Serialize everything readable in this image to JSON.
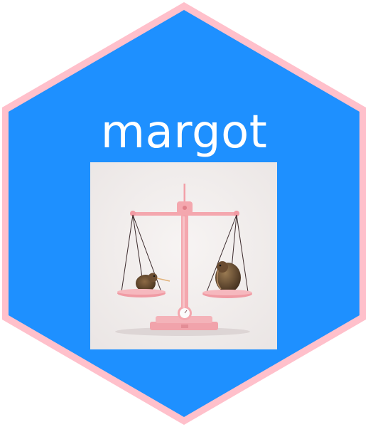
{
  "logo": {
    "title": "margot",
    "colors": {
      "hex_fill": "#1e90ff",
      "hex_border": "#ffc0cb",
      "title_text": "#ffffff",
      "picture_background": "#f3efee",
      "scale_pink": "#f4a7ae",
      "kiwi_brown": "#7a5a3a"
    },
    "picture": {
      "icon": "balance-scale-with-kiwi-birds"
    }
  }
}
